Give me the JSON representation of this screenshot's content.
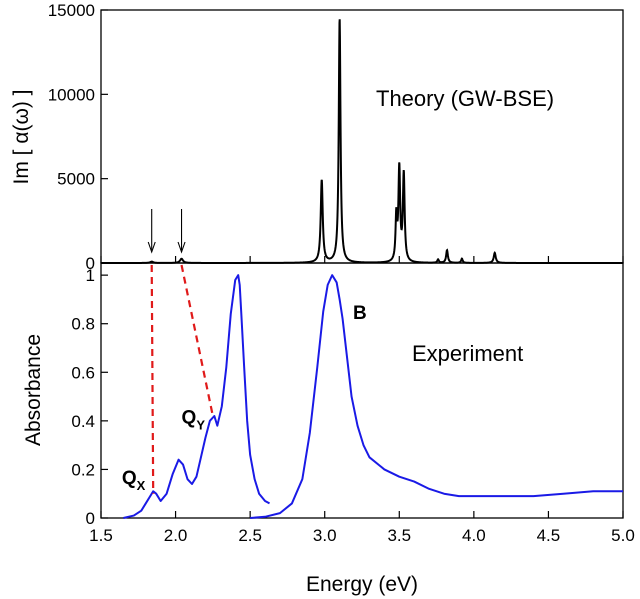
{
  "figure": {
    "xlabel": "Energy (eV)",
    "x_ticks": [
      "1.5",
      "2.0",
      "2.5",
      "3.0",
      "3.5",
      "4.0",
      "4.5",
      "5.0"
    ]
  },
  "chart_data": [
    {
      "type": "line",
      "panel": "top",
      "ylabel": "Im [ α(ω) ]",
      "annotation": "Theory (GW-BSE)",
      "xlim": [
        1.5,
        5.0
      ],
      "ylim": [
        0,
        15000
      ],
      "y_ticks": [
        "0",
        "5000",
        "10000",
        "15000"
      ],
      "color": "#000000",
      "peaks": [
        {
          "x": 1.84,
          "h": 80,
          "w": 0.012
        },
        {
          "x": 2.04,
          "h": 250,
          "w": 0.012
        },
        {
          "x": 2.98,
          "h": 4900,
          "w": 0.008
        },
        {
          "x": 3.1,
          "h": 14500,
          "w": 0.007
        },
        {
          "x": 3.48,
          "h": 2600,
          "w": 0.006
        },
        {
          "x": 3.5,
          "h": 5500,
          "w": 0.007
        },
        {
          "x": 3.53,
          "h": 5200,
          "w": 0.007
        },
        {
          "x": 3.76,
          "h": 200,
          "w": 0.006
        },
        {
          "x": 3.82,
          "h": 750,
          "w": 0.007
        },
        {
          "x": 3.92,
          "h": 250,
          "w": 0.006
        },
        {
          "x": 4.14,
          "h": 600,
          "w": 0.008
        }
      ],
      "arrows_at_x": [
        1.84,
        2.04
      ]
    },
    {
      "type": "line",
      "panel": "bottom",
      "ylabel": "Absorbance",
      "annotation": "Experiment",
      "xlim": [
        1.5,
        5.0
      ],
      "ylim": [
        0,
        1.05
      ],
      "y_ticks": [
        "0",
        "0.2",
        "0.4",
        "0.6",
        "0.8",
        "1"
      ],
      "color": "#1a1ae6",
      "series": [
        {
          "x": [
            1.65,
            1.72,
            1.77,
            1.8,
            1.83,
            1.85,
            1.87,
            1.9,
            1.94,
            1.98,
            2.02,
            2.05,
            2.08,
            2.11,
            2.14,
            2.17,
            2.2,
            2.23,
            2.26,
            2.28,
            2.31,
            2.34,
            2.37,
            2.4,
            2.42,
            2.43,
            2.44,
            2.46,
            2.48,
            2.5,
            2.53,
            2.56,
            2.6,
            2.63
          ],
          "values": [
            0.0,
            0.01,
            0.03,
            0.06,
            0.09,
            0.11,
            0.1,
            0.07,
            0.1,
            0.18,
            0.24,
            0.22,
            0.16,
            0.14,
            0.17,
            0.25,
            0.33,
            0.4,
            0.42,
            0.38,
            0.46,
            0.62,
            0.84,
            0.98,
            1.0,
            0.96,
            0.85,
            0.62,
            0.4,
            0.26,
            0.16,
            0.1,
            0.07,
            0.06
          ]
        },
        {
          "x": [
            2.5,
            2.6,
            2.7,
            2.78,
            2.85,
            2.9,
            2.95,
            2.99,
            3.02,
            3.05,
            3.08,
            3.1,
            3.12,
            3.15,
            3.18,
            3.22,
            3.26,
            3.3,
            3.4,
            3.5,
            3.6,
            3.7,
            3.8,
            3.9,
            4.0,
            4.2,
            4.4,
            4.6,
            4.8,
            5.0
          ],
          "values": [
            0.0,
            0.005,
            0.02,
            0.06,
            0.16,
            0.35,
            0.62,
            0.85,
            0.96,
            1.0,
            0.97,
            0.9,
            0.82,
            0.66,
            0.5,
            0.38,
            0.3,
            0.25,
            0.2,
            0.17,
            0.15,
            0.12,
            0.1,
            0.09,
            0.09,
            0.09,
            0.09,
            0.1,
            0.11,
            0.11
          ]
        }
      ],
      "labels": [
        {
          "text": "Q",
          "sub": "X",
          "x": 1.64,
          "y": 0.14
        },
        {
          "text": "Q",
          "sub": "Y",
          "x": 2.04,
          "y": 0.39
        },
        {
          "text": "B",
          "x": 3.19,
          "y": 0.82
        }
      ],
      "dashed_links": [
        {
          "from_x": 1.84,
          "to_x": 1.85,
          "to_y": 0.1
        },
        {
          "from_x": 2.04,
          "to_x": 2.25,
          "to_y": 0.42
        }
      ],
      "dashed_color": "#e01a1a"
    }
  ]
}
